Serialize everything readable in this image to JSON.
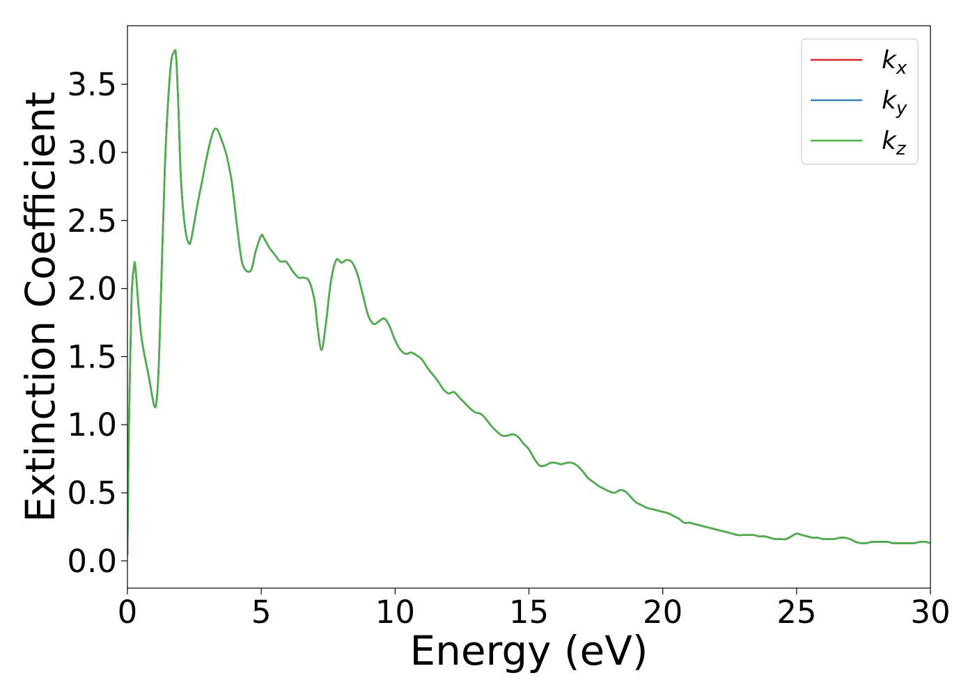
{
  "chart_data": {
    "type": "line",
    "title": "",
    "xlabel": "Energy (eV)",
    "ylabel": "Extinction Coefficient",
    "xlim": [
      0,
      30
    ],
    "ylim": [
      -0.2,
      3.93
    ],
    "x_ticks": [
      0,
      5,
      10,
      15,
      20,
      25,
      30
    ],
    "x_tick_labels": [
      "0",
      "5",
      "10",
      "15",
      "20",
      "25",
      "30"
    ],
    "y_ticks": [
      0.0,
      0.5,
      1.0,
      1.5,
      2.0,
      2.5,
      3.0,
      3.5
    ],
    "y_tick_labels": [
      "0.0",
      "0.5",
      "1.0",
      "1.5",
      "2.0",
      "2.5",
      "3.0",
      "3.5"
    ],
    "grid": false,
    "legend_position": "top-right",
    "legend": [
      {
        "base": "k",
        "sub": "x",
        "color": "#d62728"
      },
      {
        "base": "k",
        "sub": "y",
        "color": "#377eb8"
      },
      {
        "base": "k",
        "sub": "z",
        "color": "#4daf4a"
      }
    ],
    "x": [
      0,
      0.05,
      0.15,
      0.25,
      0.3,
      0.4,
      0.5,
      0.6,
      0.8,
      1.0,
      1.1,
      1.2,
      1.4,
      1.6,
      1.75,
      1.82,
      1.9,
      2.0,
      2.15,
      2.3,
      2.4,
      2.6,
      2.8,
      3.0,
      3.2,
      3.35,
      3.5,
      3.7,
      3.9,
      4.1,
      4.3,
      4.6,
      4.8,
      5.0,
      5.1,
      5.3,
      5.5,
      5.7,
      5.9,
      6.0,
      6.2,
      6.4,
      6.6,
      6.8,
      7.0,
      7.1,
      7.25,
      7.4,
      7.6,
      7.8,
      8.0,
      8.2,
      8.4,
      8.6,
      8.8,
      9.0,
      9.2,
      9.4,
      9.6,
      9.8,
      10.0,
      10.2,
      10.4,
      10.6,
      10.8,
      11.0,
      11.2,
      11.4,
      11.6,
      11.8,
      12.0,
      12.2,
      12.4,
      12.6,
      12.8,
      13.0,
      13.2,
      13.4,
      13.6,
      13.8,
      14.0,
      14.2,
      14.4,
      14.6,
      14.8,
      15.0,
      15.2,
      15.4,
      15.6,
      15.8,
      16.0,
      16.2,
      16.4,
      16.6,
      16.8,
      17.0,
      17.2,
      17.4,
      17.6,
      17.8,
      18.0,
      18.2,
      18.4,
      18.6,
      18.8,
      19.0,
      19.2,
      19.4,
      19.6,
      19.8,
      20.0,
      20.2,
      20.4,
      20.6,
      20.8,
      21.0,
      21.2,
      21.4,
      21.6,
      21.8,
      22.0,
      22.2,
      22.4,
      22.6,
      22.8,
      23.0,
      23.2,
      23.4,
      23.6,
      23.8,
      24.0,
      24.2,
      24.4,
      24.6,
      24.8,
      25.0,
      25.2,
      25.4,
      25.6,
      25.8,
      26.0,
      26.2,
      26.4,
      26.6,
      26.8,
      27.0,
      27.2,
      27.4,
      27.6,
      27.8,
      28.0,
      28.2,
      28.4,
      28.6,
      28.8,
      29.0,
      29.2,
      29.4,
      29.6,
      29.8,
      30.0
    ],
    "series": [
      {
        "name": "k_x",
        "color": "#d62728",
        "values": [
          0.05,
          0.9,
          1.9,
          2.17,
          2.15,
          1.9,
          1.68,
          1.55,
          1.35,
          1.14,
          1.2,
          1.6,
          2.9,
          3.6,
          3.74,
          3.7,
          3.35,
          2.8,
          2.45,
          2.33,
          2.38,
          2.6,
          2.8,
          3.0,
          3.15,
          3.17,
          3.1,
          2.98,
          2.78,
          2.45,
          2.18,
          2.13,
          2.28,
          2.39,
          2.37,
          2.3,
          2.25,
          2.2,
          2.2,
          2.18,
          2.12,
          2.08,
          2.08,
          2.05,
          1.9,
          1.72,
          1.55,
          1.72,
          2.05,
          2.21,
          2.19,
          2.21,
          2.19,
          2.1,
          1.95,
          1.8,
          1.74,
          1.76,
          1.78,
          1.72,
          1.62,
          1.55,
          1.52,
          1.53,
          1.51,
          1.48,
          1.42,
          1.37,
          1.32,
          1.26,
          1.23,
          1.24,
          1.2,
          1.16,
          1.12,
          1.09,
          1.08,
          1.04,
          0.99,
          0.95,
          0.92,
          0.92,
          0.93,
          0.91,
          0.86,
          0.82,
          0.75,
          0.7,
          0.7,
          0.72,
          0.72,
          0.71,
          0.72,
          0.72,
          0.7,
          0.66,
          0.61,
          0.58,
          0.55,
          0.53,
          0.51,
          0.5,
          0.52,
          0.51,
          0.47,
          0.43,
          0.41,
          0.39,
          0.38,
          0.37,
          0.36,
          0.35,
          0.33,
          0.31,
          0.28,
          0.28,
          0.27,
          0.26,
          0.25,
          0.24,
          0.23,
          0.22,
          0.21,
          0.2,
          0.19,
          0.19,
          0.19,
          0.19,
          0.18,
          0.18,
          0.17,
          0.16,
          0.16,
          0.16,
          0.18,
          0.2,
          0.19,
          0.18,
          0.17,
          0.17,
          0.16,
          0.16,
          0.16,
          0.17,
          0.17,
          0.16,
          0.14,
          0.13,
          0.13,
          0.14,
          0.14,
          0.14,
          0.14,
          0.13,
          0.13,
          0.13,
          0.13,
          0.13,
          0.14,
          0.14,
          0.13
        ]
      },
      {
        "name": "k_y",
        "color": "#377eb8",
        "values": [
          0.05,
          0.9,
          1.9,
          2.17,
          2.15,
          1.9,
          1.68,
          1.55,
          1.35,
          1.14,
          1.2,
          1.6,
          2.9,
          3.6,
          3.74,
          3.7,
          3.35,
          2.8,
          2.45,
          2.33,
          2.38,
          2.6,
          2.8,
          3.0,
          3.15,
          3.17,
          3.1,
          2.98,
          2.78,
          2.45,
          2.18,
          2.13,
          2.28,
          2.39,
          2.37,
          2.3,
          2.25,
          2.2,
          2.2,
          2.18,
          2.12,
          2.08,
          2.08,
          2.05,
          1.9,
          1.72,
          1.55,
          1.72,
          2.05,
          2.21,
          2.19,
          2.21,
          2.19,
          2.1,
          1.95,
          1.8,
          1.74,
          1.76,
          1.78,
          1.72,
          1.62,
          1.55,
          1.52,
          1.53,
          1.51,
          1.48,
          1.42,
          1.37,
          1.32,
          1.26,
          1.23,
          1.24,
          1.2,
          1.16,
          1.12,
          1.09,
          1.08,
          1.04,
          0.99,
          0.95,
          0.92,
          0.92,
          0.93,
          0.91,
          0.86,
          0.82,
          0.75,
          0.7,
          0.7,
          0.72,
          0.72,
          0.71,
          0.72,
          0.72,
          0.7,
          0.66,
          0.61,
          0.58,
          0.55,
          0.53,
          0.51,
          0.5,
          0.52,
          0.51,
          0.47,
          0.43,
          0.41,
          0.39,
          0.38,
          0.37,
          0.36,
          0.35,
          0.33,
          0.31,
          0.28,
          0.28,
          0.27,
          0.26,
          0.25,
          0.24,
          0.23,
          0.22,
          0.21,
          0.2,
          0.19,
          0.19,
          0.19,
          0.19,
          0.18,
          0.18,
          0.17,
          0.16,
          0.16,
          0.16,
          0.18,
          0.2,
          0.19,
          0.18,
          0.17,
          0.17,
          0.16,
          0.16,
          0.16,
          0.17,
          0.17,
          0.16,
          0.14,
          0.13,
          0.13,
          0.14,
          0.14,
          0.14,
          0.14,
          0.13,
          0.13,
          0.13,
          0.13,
          0.13,
          0.14,
          0.14,
          0.13
        ]
      },
      {
        "name": "k_z",
        "color": "#4daf4a",
        "values": [
          0.05,
          0.9,
          1.9,
          2.17,
          2.15,
          1.9,
          1.68,
          1.55,
          1.35,
          1.14,
          1.2,
          1.6,
          2.9,
          3.6,
          3.74,
          3.7,
          3.35,
          2.8,
          2.45,
          2.33,
          2.38,
          2.6,
          2.8,
          3.0,
          3.15,
          3.17,
          3.1,
          2.98,
          2.78,
          2.45,
          2.18,
          2.13,
          2.28,
          2.39,
          2.37,
          2.3,
          2.25,
          2.2,
          2.2,
          2.18,
          2.12,
          2.08,
          2.08,
          2.05,
          1.9,
          1.72,
          1.55,
          1.72,
          2.05,
          2.21,
          2.19,
          2.21,
          2.19,
          2.1,
          1.95,
          1.8,
          1.74,
          1.76,
          1.78,
          1.72,
          1.62,
          1.55,
          1.52,
          1.53,
          1.51,
          1.48,
          1.42,
          1.37,
          1.32,
          1.26,
          1.23,
          1.24,
          1.2,
          1.16,
          1.12,
          1.09,
          1.08,
          1.04,
          0.99,
          0.95,
          0.92,
          0.92,
          0.93,
          0.91,
          0.86,
          0.82,
          0.75,
          0.7,
          0.7,
          0.72,
          0.72,
          0.71,
          0.72,
          0.72,
          0.7,
          0.66,
          0.61,
          0.58,
          0.55,
          0.53,
          0.51,
          0.5,
          0.52,
          0.51,
          0.47,
          0.43,
          0.41,
          0.39,
          0.38,
          0.37,
          0.36,
          0.35,
          0.33,
          0.31,
          0.28,
          0.28,
          0.27,
          0.26,
          0.25,
          0.24,
          0.23,
          0.22,
          0.21,
          0.2,
          0.19,
          0.19,
          0.19,
          0.19,
          0.18,
          0.18,
          0.17,
          0.16,
          0.16,
          0.16,
          0.18,
          0.2,
          0.19,
          0.18,
          0.17,
          0.17,
          0.16,
          0.16,
          0.16,
          0.17,
          0.17,
          0.16,
          0.14,
          0.13,
          0.13,
          0.14,
          0.14,
          0.14,
          0.14,
          0.13,
          0.13,
          0.13,
          0.13,
          0.13,
          0.14,
          0.14,
          0.13
        ]
      }
    ]
  }
}
